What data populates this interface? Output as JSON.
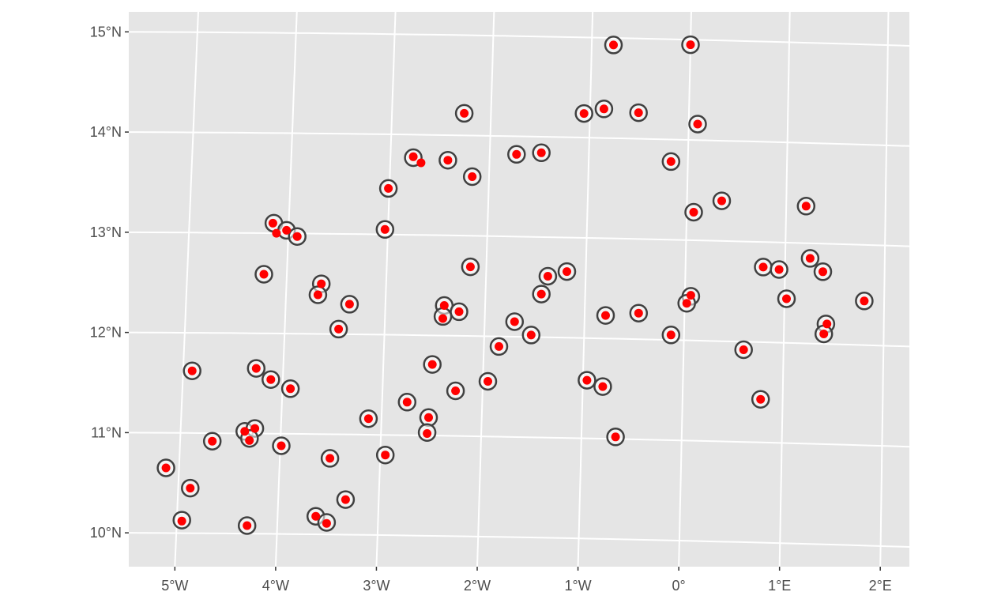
{
  "colors": {
    "panel_background": "#e5e5e5",
    "graticule": "#ffffff",
    "tick_label": "#4d4d4d",
    "tick_mark": "#333333",
    "outer_point_fill": "#ffffff",
    "outer_point_stroke": "#404040",
    "inner_point": "#ff0000"
  },
  "chart_data": {
    "type": "scatter",
    "title": "",
    "xlabel": "",
    "ylabel": "",
    "projection": "curved graticule map projection",
    "grid": true,
    "legend": "none",
    "xlim": [
      -5.6,
      2.25
    ],
    "ylim": [
      9.75,
      15.3
    ],
    "x_ticks": [
      {
        "value": -5,
        "label": "5°W"
      },
      {
        "value": -4,
        "label": "4°W"
      },
      {
        "value": -3,
        "label": "3°W"
      },
      {
        "value": -2,
        "label": "2°W"
      },
      {
        "value": -1,
        "label": "1°W"
      },
      {
        "value": 0,
        "label": "0°"
      },
      {
        "value": 1,
        "label": "1°E"
      },
      {
        "value": 2,
        "label": "2°E"
      }
    ],
    "y_ticks": [
      {
        "value": 10,
        "label": "10°N"
      },
      {
        "value": 11,
        "label": "11°N"
      },
      {
        "value": 12,
        "label": "12°N"
      },
      {
        "value": 13,
        "label": "13°N"
      },
      {
        "value": 14,
        "label": "14°N"
      },
      {
        "value": 15,
        "label": "15°N"
      }
    ],
    "series": [
      {
        "marker": "ring",
        "points": [
          [
            -0.78,
            14.93
          ],
          [
            0.0,
            14.95
          ],
          [
            -2.27,
            14.22
          ],
          [
            -1.06,
            14.24
          ],
          [
            -0.86,
            14.29
          ],
          [
            -0.51,
            14.26
          ],
          [
            0.09,
            14.16
          ],
          [
            -2.77,
            13.77
          ],
          [
            -2.42,
            13.75
          ],
          [
            -1.73,
            13.82
          ],
          [
            -1.48,
            13.84
          ],
          [
            -0.17,
            13.78
          ],
          [
            -2.17,
            13.59
          ],
          [
            -3.01,
            13.46
          ],
          [
            0.07,
            13.28
          ],
          [
            0.35,
            13.4
          ],
          [
            1.2,
            13.37
          ],
          [
            -4.15,
            13.1
          ],
          [
            -4.02,
            13.03
          ],
          [
            -3.91,
            12.97
          ],
          [
            -3.03,
            13.05
          ],
          [
            -4.23,
            12.59
          ],
          [
            -3.65,
            12.5
          ],
          [
            -3.68,
            12.39
          ],
          [
            -3.36,
            12.3
          ],
          [
            -2.16,
            12.69
          ],
          [
            -1.38,
            12.61
          ],
          [
            -1.19,
            12.66
          ],
          [
            -1.44,
            12.43
          ],
          [
            0.06,
            12.44
          ],
          [
            0.02,
            12.37
          ],
          [
            0.78,
            12.75
          ],
          [
            0.94,
            12.73
          ],
          [
            1.25,
            12.85
          ],
          [
            1.38,
            12.72
          ],
          [
            1.02,
            12.44
          ],
          [
            1.8,
            12.44
          ],
          [
            1.42,
            12.2
          ],
          [
            1.4,
            12.1
          ],
          [
            -2.41,
            12.3
          ],
          [
            -2.42,
            12.19
          ],
          [
            -2.26,
            12.24
          ],
          [
            -1.7,
            12.15
          ],
          [
            -0.79,
            12.23
          ],
          [
            -0.46,
            12.26
          ],
          [
            -3.46,
            12.05
          ],
          [
            -1.85,
            11.9
          ],
          [
            -1.53,
            12.02
          ],
          [
            -0.13,
            12.05
          ],
          [
            0.6,
            11.92
          ],
          [
            -4.91,
            11.62
          ],
          [
            -4.27,
            11.65
          ],
          [
            -4.12,
            11.54
          ],
          [
            -3.92,
            11.45
          ],
          [
            -2.51,
            11.71
          ],
          [
            -2.27,
            11.45
          ],
          [
            -1.95,
            11.55
          ],
          [
            -0.96,
            11.58
          ],
          [
            -0.8,
            11.52
          ],
          [
            0.78,
            11.43
          ],
          [
            -2.75,
            11.33
          ],
          [
            -2.53,
            11.18
          ],
          [
            -2.54,
            11.03
          ],
          [
            -3.13,
            11.16
          ],
          [
            -4.36,
            11.02
          ],
          [
            -4.26,
            11.05
          ],
          [
            -4.31,
            10.95
          ],
          [
            -4.68,
            10.92
          ],
          [
            -3.99,
            10.88
          ],
          [
            -3.5,
            10.76
          ],
          [
            -2.95,
            10.8
          ],
          [
            -0.66,
            11.02
          ],
          [
            -5.13,
            10.65
          ],
          [
            -4.88,
            10.45
          ],
          [
            -4.95,
            10.13
          ],
          [
            -4.3,
            10.08
          ],
          [
            -3.62,
            10.18
          ],
          [
            -3.51,
            10.12
          ],
          [
            -3.33,
            10.35
          ]
        ]
      },
      {
        "marker": "dot",
        "points": [
          [
            -0.78,
            14.93
          ],
          [
            0.0,
            14.95
          ],
          [
            -2.27,
            14.22
          ],
          [
            -1.06,
            14.24
          ],
          [
            -0.86,
            14.29
          ],
          [
            -0.51,
            14.26
          ],
          [
            0.09,
            14.16
          ],
          [
            -2.77,
            13.78
          ],
          [
            -2.69,
            13.72
          ],
          [
            -2.42,
            13.75
          ],
          [
            -1.73,
            13.82
          ],
          [
            -1.48,
            13.84
          ],
          [
            -0.17,
            13.78
          ],
          [
            -2.17,
            13.59
          ],
          [
            -3.01,
            13.46
          ],
          [
            0.07,
            13.28
          ],
          [
            0.35,
            13.4
          ],
          [
            1.2,
            13.37
          ],
          [
            -4.16,
            13.1
          ],
          [
            -4.12,
            13.0
          ],
          [
            -4.02,
            13.03
          ],
          [
            -3.91,
            12.97
          ],
          [
            -3.03,
            13.05
          ],
          [
            -4.23,
            12.59
          ],
          [
            -3.65,
            12.5
          ],
          [
            -3.68,
            12.39
          ],
          [
            -3.36,
            12.3
          ],
          [
            -2.16,
            12.69
          ],
          [
            -1.38,
            12.61
          ],
          [
            -1.19,
            12.66
          ],
          [
            -1.44,
            12.43
          ],
          [
            0.06,
            12.45
          ],
          [
            0.02,
            12.37
          ],
          [
            0.78,
            12.75
          ],
          [
            0.94,
            12.73
          ],
          [
            1.25,
            12.85
          ],
          [
            1.38,
            12.72
          ],
          [
            1.02,
            12.44
          ],
          [
            1.8,
            12.44
          ],
          [
            1.43,
            12.2
          ],
          [
            1.4,
            12.1
          ],
          [
            -2.41,
            12.3
          ],
          [
            -2.42,
            12.17
          ],
          [
            -2.26,
            12.24
          ],
          [
            -1.7,
            12.15
          ],
          [
            -0.79,
            12.23
          ],
          [
            -0.46,
            12.26
          ],
          [
            -3.46,
            12.05
          ],
          [
            -1.85,
            11.9
          ],
          [
            -1.53,
            12.02
          ],
          [
            -0.13,
            12.05
          ],
          [
            0.6,
            11.92
          ],
          [
            -4.91,
            11.62
          ],
          [
            -4.27,
            11.65
          ],
          [
            -4.12,
            11.54
          ],
          [
            -3.92,
            11.45
          ],
          [
            -2.51,
            11.71
          ],
          [
            -2.27,
            11.45
          ],
          [
            -1.95,
            11.55
          ],
          [
            -0.96,
            11.58
          ],
          [
            -0.8,
            11.52
          ],
          [
            0.78,
            11.43
          ],
          [
            -2.75,
            11.33
          ],
          [
            -2.53,
            11.18
          ],
          [
            -2.54,
            11.02
          ],
          [
            -3.13,
            11.16
          ],
          [
            -4.36,
            11.02
          ],
          [
            -4.26,
            11.05
          ],
          [
            -4.31,
            10.93
          ],
          [
            -4.68,
            10.92
          ],
          [
            -3.99,
            10.88
          ],
          [
            -3.5,
            10.76
          ],
          [
            -2.95,
            10.8
          ],
          [
            -0.66,
            11.02
          ],
          [
            -5.13,
            10.65
          ],
          [
            -4.88,
            10.45
          ],
          [
            -4.95,
            10.12
          ],
          [
            -4.3,
            10.08
          ],
          [
            -3.62,
            10.18
          ],
          [
            -3.51,
            10.11
          ],
          [
            -3.33,
            10.35
          ]
        ]
      }
    ]
  }
}
